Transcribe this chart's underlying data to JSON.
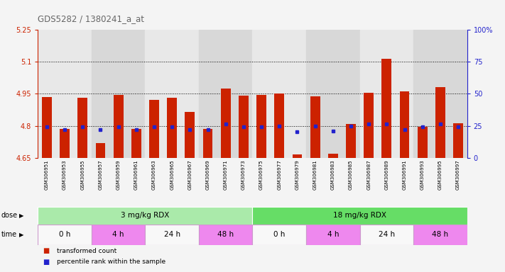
{
  "title": "GDS5282 / 1380241_a_at",
  "samples": [
    "GSM306951",
    "GSM306953",
    "GSM306955",
    "GSM306957",
    "GSM306959",
    "GSM306961",
    "GSM306963",
    "GSM306965",
    "GSM306967",
    "GSM306969",
    "GSM306971",
    "GSM306973",
    "GSM306975",
    "GSM306977",
    "GSM306979",
    "GSM306981",
    "GSM306983",
    "GSM306985",
    "GSM306987",
    "GSM306989",
    "GSM306991",
    "GSM306993",
    "GSM306995",
    "GSM306997"
  ],
  "bar_values": [
    4.935,
    4.785,
    4.932,
    4.72,
    4.944,
    4.785,
    4.922,
    4.932,
    4.865,
    4.785,
    4.975,
    4.943,
    4.945,
    4.95,
    4.665,
    4.937,
    4.67,
    4.808,
    4.955,
    5.115,
    4.96,
    4.795,
    4.982,
    4.813
  ],
  "blue_values": [
    4.795,
    4.782,
    4.795,
    4.782,
    4.795,
    4.783,
    4.797,
    4.797,
    4.782,
    4.783,
    4.808,
    4.797,
    4.797,
    4.8,
    4.773,
    4.8,
    4.775,
    4.8,
    4.808,
    4.808,
    4.783,
    4.797,
    4.808,
    4.797
  ],
  "ymin": 4.65,
  "ymax": 5.25,
  "yticks": [
    4.65,
    4.8,
    4.95,
    5.1,
    5.25
  ],
  "ytick_labels": [
    "4.65",
    "4.8",
    "4.95",
    "5.1",
    "5.25"
  ],
  "right_yticks": [
    0,
    25,
    50,
    75,
    100
  ],
  "right_ytick_labels": [
    "0",
    "25",
    "50",
    "75",
    "100%"
  ],
  "grid_lines": [
    4.8,
    4.95,
    5.1
  ],
  "bar_color": "#cc2200",
  "blue_color": "#2222cc",
  "bar_width": 0.55,
  "col_bg_even": "#e8e8e8",
  "col_bg_odd": "#d8d8d8",
  "dose_groups": [
    {
      "label": "3 mg/kg RDX",
      "start": 0,
      "end": 12,
      "color": "#aaeaaa"
    },
    {
      "label": "18 mg/kg RDX",
      "start": 12,
      "end": 24,
      "color": "#66dd66"
    }
  ],
  "time_groups": [
    {
      "label": "0 h",
      "start": 0,
      "end": 3,
      "color": "#f8f8f8"
    },
    {
      "label": "4 h",
      "start": 3,
      "end": 6,
      "color": "#ee88ee"
    },
    {
      "label": "24 h",
      "start": 6,
      "end": 9,
      "color": "#f8f8f8"
    },
    {
      "label": "48 h",
      "start": 9,
      "end": 12,
      "color": "#ee88ee"
    },
    {
      "label": "0 h",
      "start": 12,
      "end": 15,
      "color": "#f8f8f8"
    },
    {
      "label": "4 h",
      "start": 15,
      "end": 18,
      "color": "#ee88ee"
    },
    {
      "label": "24 h",
      "start": 18,
      "end": 21,
      "color": "#f8f8f8"
    },
    {
      "label": "48 h",
      "start": 21,
      "end": 24,
      "color": "#ee88ee"
    }
  ],
  "legend": [
    {
      "label": "transformed count",
      "color": "#cc2200"
    },
    {
      "label": "percentile rank within the sample",
      "color": "#2222cc"
    }
  ],
  "fig_bg": "#f4f4f4",
  "plot_bg": "#ffffff",
  "left_axis_color": "#cc2200",
  "right_axis_color": "#2222cc",
  "title_color": "#666666"
}
